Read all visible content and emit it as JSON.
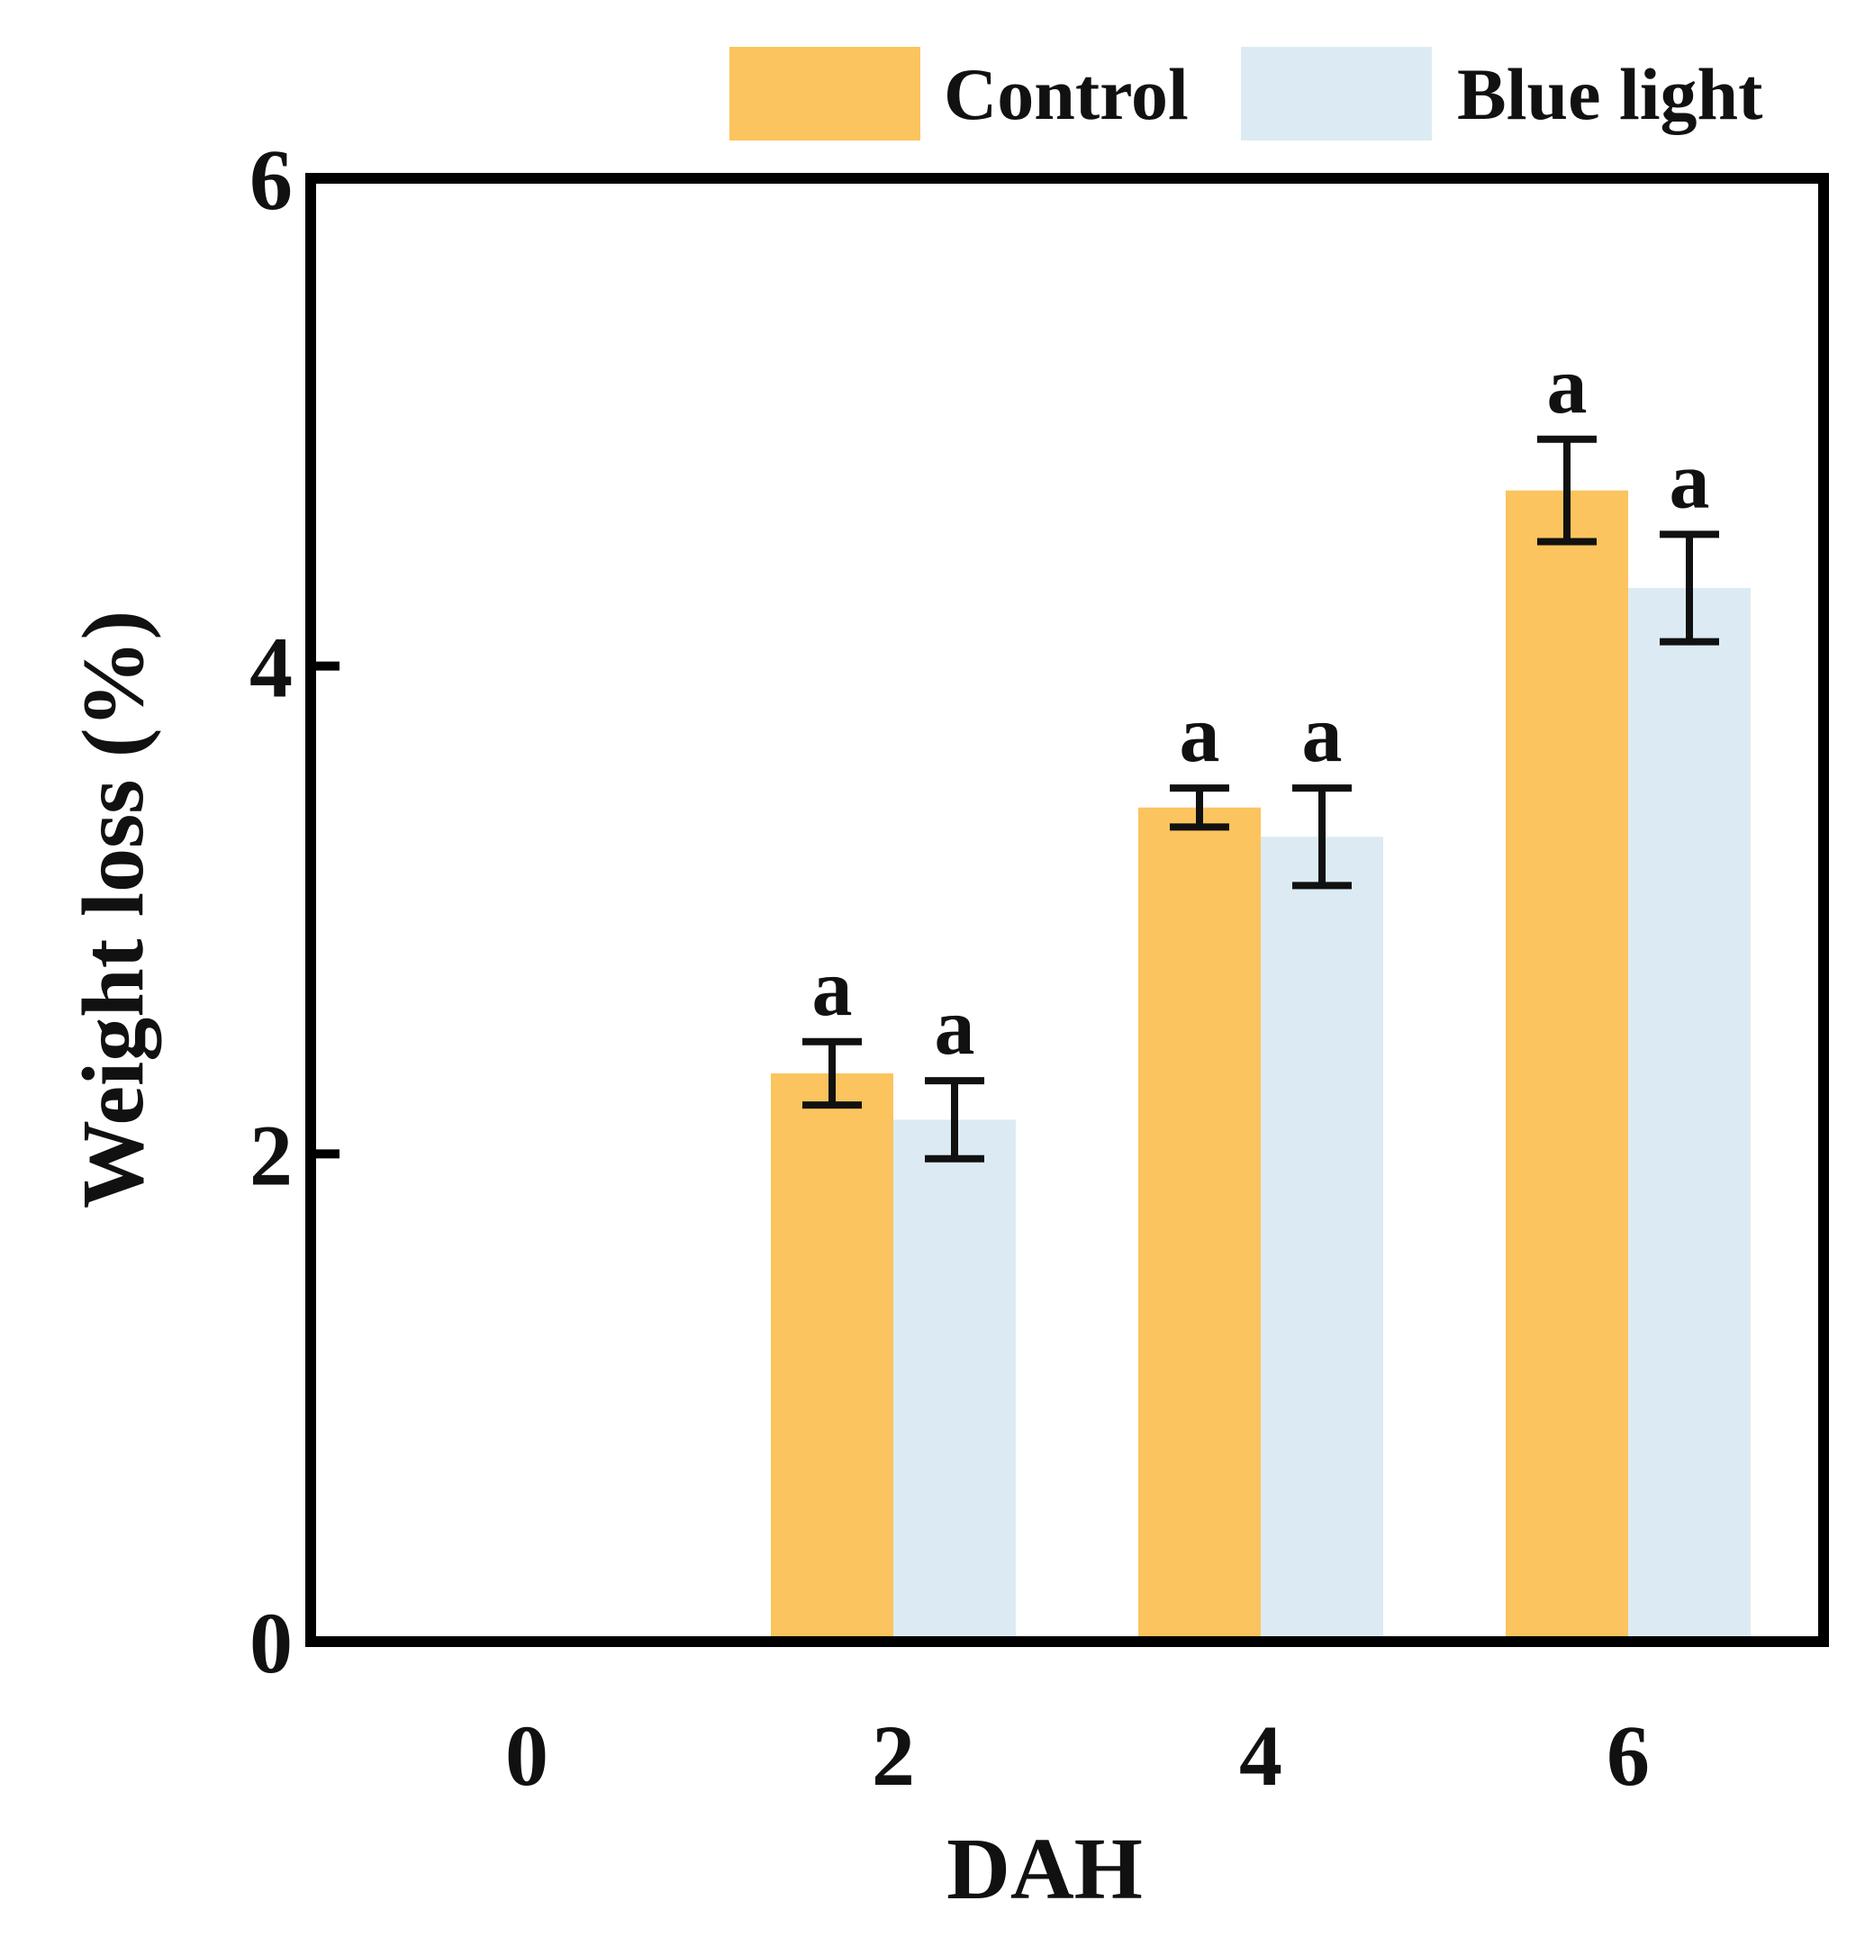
{
  "chart_data": {
    "type": "bar",
    "title": "",
    "xlabel": "DAH",
    "ylabel": "Weight loss (%)",
    "categories": [
      "0",
      "2",
      "4",
      "6"
    ],
    "ylim": [
      0,
      6
    ],
    "yticks": [
      "0",
      "2",
      "4",
      "6"
    ],
    "series": [
      {
        "name": "Control",
        "color": "#FBC45E",
        "values": [
          0,
          2.33,
          3.42,
          4.72
        ],
        "errors": [
          0,
          0.13,
          0.08,
          0.21
        ],
        "labels": [
          "",
          "a",
          "a",
          "a"
        ]
      },
      {
        "name": "Blue light",
        "color": "#DCEBF3",
        "values": [
          0,
          2.14,
          3.3,
          4.32
        ],
        "errors": [
          0,
          0.16,
          0.2,
          0.22
        ],
        "labels": [
          "",
          "a",
          "a",
          "a"
        ]
      }
    ],
    "legend": "top-right",
    "grid": false
  }
}
